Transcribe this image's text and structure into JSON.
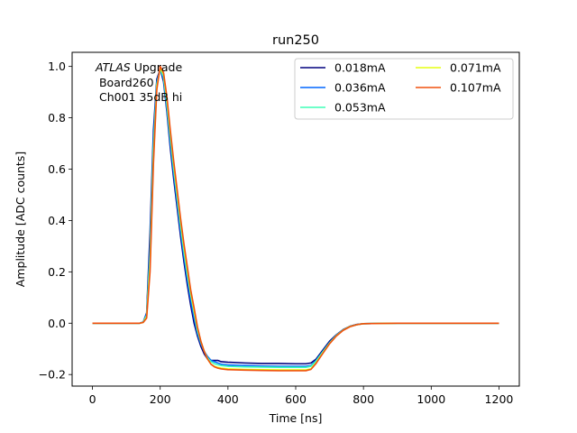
{
  "chart_data": {
    "type": "line",
    "title": "run250",
    "xlabel": "Time [ns]",
    "ylabel": "Amplitude [ADC counts]",
    "xlim": [
      -60,
      1260
    ],
    "ylim": [
      -0.245,
      1.055
    ],
    "xticks": [
      0,
      200,
      400,
      600,
      800,
      1000,
      1200
    ],
    "yticks": [
      -0.2,
      0.0,
      0.2,
      0.4,
      0.6,
      0.8,
      1.0
    ],
    "xtick_labels": [
      "0",
      "200",
      "400",
      "600",
      "800",
      "1000",
      "1200"
    ],
    "ytick_labels": [
      "−0.2",
      "0.0",
      "0.2",
      "0.4",
      "0.6",
      "0.8",
      "1.0"
    ],
    "grid": false,
    "legend_position": "top-right",
    "legend_columns": 2,
    "annotation": {
      "italic": "ATLAS",
      "rest": " Upgrade",
      "line2": " Board260",
      "line3": " Ch001 35dB hi"
    },
    "x": [
      0,
      140,
      150,
      160,
      170,
      180,
      190,
      200,
      210,
      220,
      230,
      240,
      250,
      260,
      270,
      280,
      290,
      300,
      310,
      320,
      330,
      340,
      350,
      360,
      370,
      380,
      400,
      450,
      500,
      550,
      600,
      630,
      645,
      660,
      680,
      700,
      720,
      740,
      760,
      780,
      800,
      850,
      900,
      1000,
      1100,
      1200
    ],
    "series": [
      {
        "name": "0.018mA",
        "color": "#00007f",
        "y": [
          0.0,
          0.0,
          0.005,
          0.04,
          0.35,
          0.75,
          0.95,
          0.99,
          0.94,
          0.82,
          0.68,
          0.56,
          0.45,
          0.34,
          0.24,
          0.15,
          0.07,
          0.0,
          -0.05,
          -0.09,
          -0.12,
          -0.14,
          -0.145,
          -0.145,
          -0.145,
          -0.15,
          -0.152,
          -0.155,
          -0.157,
          -0.157,
          -0.158,
          -0.158,
          -0.155,
          -0.14,
          -0.105,
          -0.07,
          -0.045,
          -0.025,
          -0.012,
          -0.005,
          -0.002,
          -0.001,
          0.0,
          0.0,
          0.0,
          0.0
        ]
      },
      {
        "name": "0.036mA",
        "color": "#0066ff",
        "y": [
          0.0,
          0.0,
          0.005,
          0.035,
          0.3,
          0.72,
          0.94,
          0.99,
          0.95,
          0.83,
          0.7,
          0.58,
          0.47,
          0.36,
          0.26,
          0.17,
          0.09,
          0.02,
          -0.04,
          -0.08,
          -0.11,
          -0.13,
          -0.145,
          -0.15,
          -0.155,
          -0.16,
          -0.163,
          -0.165,
          -0.167,
          -0.168,
          -0.168,
          -0.168,
          -0.165,
          -0.145,
          -0.11,
          -0.075,
          -0.047,
          -0.026,
          -0.013,
          -0.006,
          -0.002,
          -0.001,
          0.0,
          0.0,
          0.0,
          0.0
        ]
      },
      {
        "name": "0.053mA",
        "color": "#3effb7",
        "y": [
          0.0,
          0.0,
          0.004,
          0.03,
          0.26,
          0.68,
          0.93,
          0.99,
          0.96,
          0.85,
          0.72,
          0.6,
          0.49,
          0.38,
          0.28,
          0.19,
          0.11,
          0.04,
          -0.03,
          -0.075,
          -0.11,
          -0.135,
          -0.15,
          -0.158,
          -0.162,
          -0.165,
          -0.168,
          -0.17,
          -0.171,
          -0.172,
          -0.172,
          -0.172,
          -0.168,
          -0.148,
          -0.112,
          -0.077,
          -0.048,
          -0.027,
          -0.013,
          -0.006,
          -0.002,
          -0.001,
          0.0,
          0.0,
          0.0,
          0.0
        ]
      },
      {
        "name": "0.071mA",
        "color": "#e5ff10",
        "y": [
          0.0,
          0.0,
          0.003,
          0.025,
          0.22,
          0.64,
          0.92,
          0.995,
          0.97,
          0.87,
          0.74,
          0.62,
          0.51,
          0.4,
          0.3,
          0.21,
          0.12,
          0.05,
          -0.02,
          -0.07,
          -0.11,
          -0.14,
          -0.16,
          -0.168,
          -0.172,
          -0.175,
          -0.178,
          -0.18,
          -0.181,
          -0.182,
          -0.182,
          -0.182,
          -0.178,
          -0.155,
          -0.116,
          -0.079,
          -0.049,
          -0.027,
          -0.013,
          -0.006,
          -0.002,
          -0.001,
          0.0,
          0.0,
          0.0,
          0.0
        ]
      },
      {
        "name": "0.107mA",
        "color": "#f0500f",
        "y": [
          0.0,
          0.0,
          0.003,
          0.02,
          0.2,
          0.62,
          0.91,
          1.0,
          0.975,
          0.88,
          0.75,
          0.63,
          0.52,
          0.41,
          0.31,
          0.22,
          0.13,
          0.06,
          -0.015,
          -0.07,
          -0.11,
          -0.14,
          -0.16,
          -0.17,
          -0.175,
          -0.178,
          -0.181,
          -0.183,
          -0.184,
          -0.185,
          -0.185,
          -0.185,
          -0.18,
          -0.157,
          -0.118,
          -0.08,
          -0.05,
          -0.028,
          -0.014,
          -0.006,
          -0.002,
          -0.001,
          0.0,
          0.0,
          0.0,
          0.0
        ]
      }
    ]
  }
}
